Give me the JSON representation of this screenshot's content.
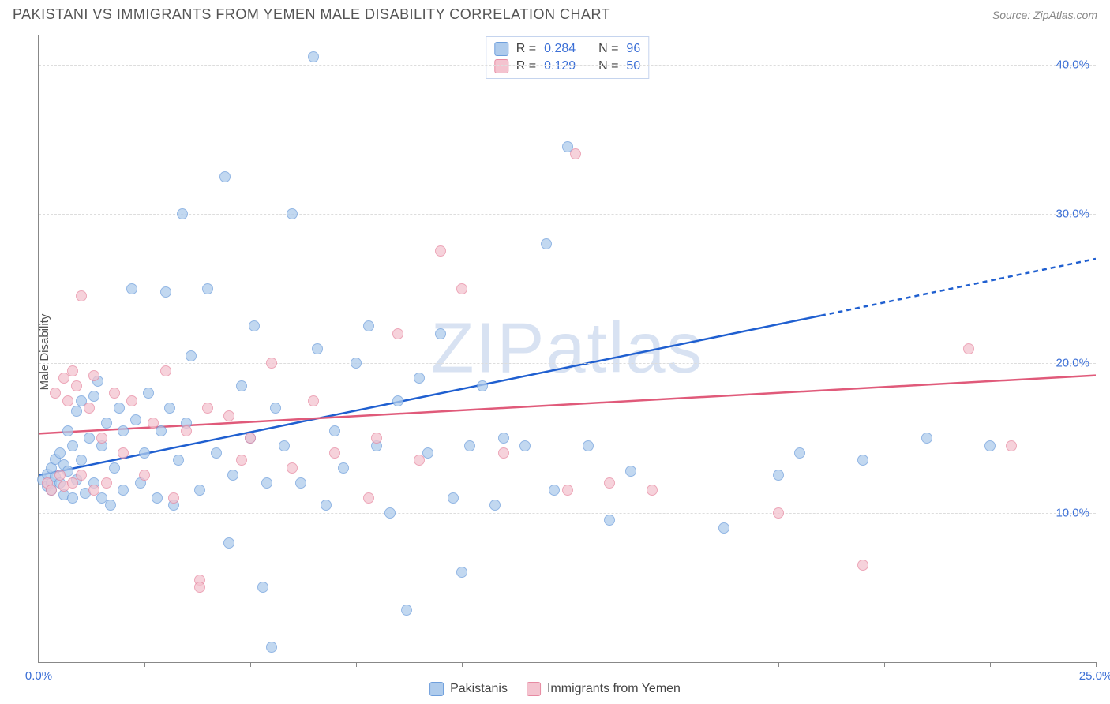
{
  "title": "PAKISTANI VS IMMIGRANTS FROM YEMEN MALE DISABILITY CORRELATION CHART",
  "source": "Source: ZipAtlas.com",
  "ylabel": "Male Disability",
  "watermark": "ZIPatlas",
  "chart": {
    "type": "scatter",
    "xlim": [
      0,
      25
    ],
    "ylim": [
      0,
      42
    ],
    "x_ticks": [
      0,
      2.5,
      5,
      7.5,
      10,
      12.5,
      15,
      17.5,
      20,
      22.5,
      25
    ],
    "x_tick_labels": {
      "0": "0.0%",
      "25": "25.0%"
    },
    "y_gridlines": [
      10,
      20,
      30,
      40
    ],
    "y_tick_labels": {
      "10": "10.0%",
      "20": "20.0%",
      "30": "30.0%",
      "40": "40.0%"
    },
    "grid_color": "#dddddd",
    "axis_color": "#888888",
    "background_color": "#ffffff",
    "tick_label_color": "#3b6fd6",
    "point_radius": 7
  },
  "series": [
    {
      "name": "Pakistanis",
      "fill_color": "#aecbec",
      "stroke_color": "#6f9fdc",
      "trend_color": "#1f5fd0",
      "trend_width": 2.5,
      "trend_start": [
        0,
        12.5
      ],
      "trend_end_solid": [
        18.5,
        23.2
      ],
      "trend_end_dash": [
        25,
        27
      ],
      "R_label": "R =",
      "R": "0.284",
      "N_label": "N =",
      "N": "96",
      "points": [
        [
          0.1,
          12.2
        ],
        [
          0.2,
          11.8
        ],
        [
          0.2,
          12.6
        ],
        [
          0.3,
          12.0
        ],
        [
          0.3,
          13.0
        ],
        [
          0.3,
          11.5
        ],
        [
          0.4,
          12.4
        ],
        [
          0.4,
          13.6
        ],
        [
          0.5,
          12.0
        ],
        [
          0.5,
          14.0
        ],
        [
          0.6,
          11.2
        ],
        [
          0.6,
          13.2
        ],
        [
          0.7,
          12.8
        ],
        [
          0.7,
          15.5
        ],
        [
          0.8,
          11.0
        ],
        [
          0.8,
          14.5
        ],
        [
          0.9,
          12.2
        ],
        [
          0.9,
          16.8
        ],
        [
          1.0,
          13.5
        ],
        [
          1.0,
          17.5
        ],
        [
          1.1,
          11.3
        ],
        [
          1.2,
          15.0
        ],
        [
          1.3,
          17.8
        ],
        [
          1.3,
          12.0
        ],
        [
          1.4,
          18.8
        ],
        [
          1.5,
          11.0
        ],
        [
          1.5,
          14.5
        ],
        [
          1.6,
          16.0
        ],
        [
          1.7,
          10.5
        ],
        [
          1.8,
          13.0
        ],
        [
          1.9,
          17.0
        ],
        [
          2.0,
          11.5
        ],
        [
          2.0,
          15.5
        ],
        [
          2.2,
          25.0
        ],
        [
          2.3,
          16.2
        ],
        [
          2.4,
          12.0
        ],
        [
          2.5,
          14.0
        ],
        [
          2.6,
          18.0
        ],
        [
          2.8,
          11.0
        ],
        [
          2.9,
          15.5
        ],
        [
          3.0,
          24.8
        ],
        [
          3.1,
          17.0
        ],
        [
          3.2,
          10.5
        ],
        [
          3.3,
          13.5
        ],
        [
          3.4,
          30.0
        ],
        [
          3.5,
          16.0
        ],
        [
          3.6,
          20.5
        ],
        [
          3.8,
          11.5
        ],
        [
          4.0,
          25.0
        ],
        [
          4.2,
          14.0
        ],
        [
          4.4,
          32.5
        ],
        [
          4.5,
          8.0
        ],
        [
          4.6,
          12.5
        ],
        [
          4.8,
          18.5
        ],
        [
          5.0,
          15.0
        ],
        [
          5.1,
          22.5
        ],
        [
          5.3,
          5.0
        ],
        [
          5.4,
          12.0
        ],
        [
          5.5,
          1.0
        ],
        [
          5.6,
          17.0
        ],
        [
          5.8,
          14.5
        ],
        [
          6.0,
          30.0
        ],
        [
          6.2,
          12.0
        ],
        [
          6.5,
          40.5
        ],
        [
          6.6,
          21.0
        ],
        [
          6.8,
          10.5
        ],
        [
          7.0,
          15.5
        ],
        [
          7.2,
          13.0
        ],
        [
          7.5,
          20.0
        ],
        [
          7.8,
          22.5
        ],
        [
          8.0,
          14.5
        ],
        [
          8.3,
          10.0
        ],
        [
          8.5,
          17.5
        ],
        [
          8.7,
          3.5
        ],
        [
          9.0,
          19.0
        ],
        [
          9.2,
          14.0
        ],
        [
          9.5,
          22.0
        ],
        [
          9.8,
          11.0
        ],
        [
          10.0,
          6.0
        ],
        [
          10.2,
          14.5
        ],
        [
          10.5,
          18.5
        ],
        [
          10.8,
          10.5
        ],
        [
          11.0,
          15.0
        ],
        [
          11.5,
          14.5
        ],
        [
          12.0,
          28.0
        ],
        [
          12.2,
          11.5
        ],
        [
          12.5,
          34.5
        ],
        [
          13.0,
          14.5
        ],
        [
          13.5,
          9.5
        ],
        [
          14.0,
          12.8
        ],
        [
          16.2,
          9.0
        ],
        [
          17.5,
          12.5
        ],
        [
          18.0,
          14.0
        ],
        [
          19.5,
          13.5
        ],
        [
          21.0,
          15.0
        ],
        [
          22.5,
          14.5
        ]
      ]
    },
    {
      "name": "Immigrants from Yemen",
      "fill_color": "#f4c3cf",
      "stroke_color": "#e78aa2",
      "trend_color": "#e05a7a",
      "trend_width": 2.5,
      "trend_start": [
        0,
        15.3
      ],
      "trend_end_solid": [
        25,
        19.2
      ],
      "trend_end_dash": null,
      "R_label": "R =",
      "R": "0.129",
      "N_label": "N =",
      "N": "50",
      "points": [
        [
          0.2,
          12.0
        ],
        [
          0.3,
          11.5
        ],
        [
          0.4,
          18.0
        ],
        [
          0.5,
          12.5
        ],
        [
          0.6,
          19.0
        ],
        [
          0.6,
          11.8
        ],
        [
          0.7,
          17.5
        ],
        [
          0.8,
          12.0
        ],
        [
          0.8,
          19.5
        ],
        [
          0.9,
          18.5
        ],
        [
          1.0,
          12.5
        ],
        [
          1.0,
          24.5
        ],
        [
          1.2,
          17.0
        ],
        [
          1.3,
          11.5
        ],
        [
          1.3,
          19.2
        ],
        [
          1.5,
          15.0
        ],
        [
          1.6,
          12.0
        ],
        [
          1.8,
          18.0
        ],
        [
          2.0,
          14.0
        ],
        [
          2.2,
          17.5
        ],
        [
          2.5,
          12.5
        ],
        [
          2.7,
          16.0
        ],
        [
          3.0,
          19.5
        ],
        [
          3.2,
          11.0
        ],
        [
          3.5,
          15.5
        ],
        [
          3.8,
          5.5
        ],
        [
          3.8,
          5.0
        ],
        [
          4.0,
          17.0
        ],
        [
          4.5,
          16.5
        ],
        [
          4.8,
          13.5
        ],
        [
          5.0,
          15.0
        ],
        [
          5.5,
          20.0
        ],
        [
          6.0,
          13.0
        ],
        [
          6.5,
          17.5
        ],
        [
          7.0,
          14.0
        ],
        [
          7.8,
          11.0
        ],
        [
          8.0,
          15.0
        ],
        [
          8.5,
          22.0
        ],
        [
          9.0,
          13.5
        ],
        [
          9.5,
          27.5
        ],
        [
          10.0,
          25.0
        ],
        [
          11.0,
          14.0
        ],
        [
          12.5,
          11.5
        ],
        [
          12.7,
          34.0
        ],
        [
          13.5,
          12.0
        ],
        [
          14.5,
          11.5
        ],
        [
          17.5,
          10.0
        ],
        [
          19.5,
          6.5
        ],
        [
          22.0,
          21.0
        ],
        [
          23.0,
          14.5
        ]
      ]
    }
  ],
  "bottom_legend": [
    {
      "swatch_fill": "#aecbec",
      "swatch_stroke": "#6f9fdc",
      "label": "Pakistanis"
    },
    {
      "swatch_fill": "#f4c3cf",
      "swatch_stroke": "#e78aa2",
      "label": "Immigrants from Yemen"
    }
  ]
}
